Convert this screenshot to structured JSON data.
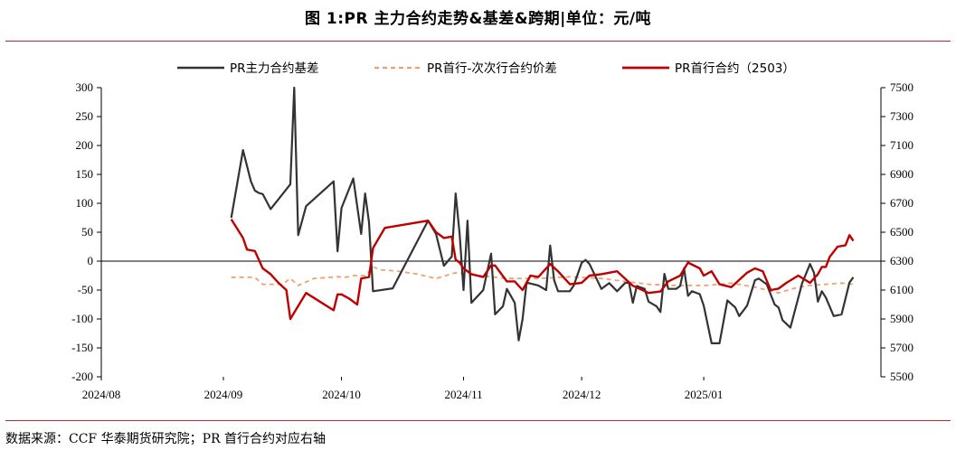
{
  "title": "图 1:PR 主力合约走势&基差&跨期|单位：元/吨",
  "source": "数据来源：CCF 华泰期货研究院；PR 首行合约对应右轴",
  "colors": {
    "accent": "#c0272d",
    "basis": "#333333",
    "spread": "#f0a070",
    "front": "#c00000"
  },
  "chart_data": {
    "type": "line",
    "x_ticks": [
      "2024/08",
      "2024/09",
      "2024/10",
      "2024/11",
      "2024/12",
      "2025/01"
    ],
    "y_left": {
      "ticks": [
        "300",
        "250",
        "200",
        "150",
        "100",
        "50",
        "0",
        "-50",
        "-100",
        "-150",
        "-200"
      ],
      "range": [
        -200,
        300
      ]
    },
    "y_right": {
      "ticks": [
        "7500",
        "7300",
        "7100",
        "6900",
        "6700",
        "6500",
        "6300",
        "6100",
        "5900",
        "5700",
        "5500"
      ],
      "range": [
        5500,
        7500
      ]
    },
    "legend": [
      "PR主力合约基差",
      "PR首行-次次行合约价差",
      "PR首行合约（2503）"
    ],
    "legend_position": "top",
    "series": [
      {
        "name": "PR主力合约基差",
        "axis": "left",
        "style": "solid",
        "points": [
          [
            "2024-09-03",
            75
          ],
          [
            "2024-09-06",
            192
          ],
          [
            "2024-09-08",
            138
          ],
          [
            "2024-09-09",
            122
          ],
          [
            "2024-09-10",
            118
          ],
          [
            "2024-09-11",
            116
          ],
          [
            "2024-09-13",
            90
          ],
          [
            "2024-09-18",
            133
          ],
          [
            "2024-09-19",
            300
          ],
          [
            "2024-09-20",
            45
          ],
          [
            "2024-09-22",
            95
          ],
          [
            "2024-09-29",
            138
          ],
          [
            "2024-09-30",
            17
          ],
          [
            "2024-10-01",
            92
          ],
          [
            "2024-10-04",
            143
          ],
          [
            "2024-10-06",
            47
          ],
          [
            "2024-10-07",
            117
          ],
          [
            "2024-10-08",
            67
          ],
          [
            "2024-10-09",
            -52
          ],
          [
            "2024-10-14",
            -47
          ],
          [
            "2024-10-23",
            70
          ],
          [
            "2024-10-25",
            47
          ],
          [
            "2024-10-27",
            -8
          ],
          [
            "2024-10-29",
            8
          ],
          [
            "2024-10-30",
            117
          ],
          [
            "2024-10-31",
            47
          ],
          [
            "2024-11-01",
            -50
          ],
          [
            "2024-11-02",
            70
          ],
          [
            "2024-11-03",
            -72
          ],
          [
            "2024-11-06",
            -50
          ],
          [
            "2024-11-08",
            13
          ],
          [
            "2024-11-09",
            -92
          ],
          [
            "2024-11-11",
            -78
          ],
          [
            "2024-11-12",
            -48
          ],
          [
            "2024-11-13",
            -60
          ],
          [
            "2024-11-14",
            -72
          ],
          [
            "2024-11-15",
            -137
          ],
          [
            "2024-11-16",
            -100
          ],
          [
            "2024-11-17",
            -37
          ],
          [
            "2024-11-20",
            -42
          ],
          [
            "2024-11-22",
            -50
          ],
          [
            "2024-11-23",
            27
          ],
          [
            "2024-11-24",
            -33
          ],
          [
            "2024-11-25",
            -52
          ],
          [
            "2024-11-28",
            -52
          ],
          [
            "2024-11-29",
            -42
          ],
          [
            "2024-12-01",
            -3
          ],
          [
            "2024-12-02",
            2
          ],
          [
            "2024-12-03",
            -5
          ],
          [
            "2024-12-06",
            -48
          ],
          [
            "2024-12-08",
            -38
          ],
          [
            "2024-12-10",
            -52
          ],
          [
            "2024-12-12",
            -38
          ],
          [
            "2024-12-13",
            -37
          ],
          [
            "2024-12-14",
            -72
          ],
          [
            "2024-12-15",
            -43
          ],
          [
            "2024-12-17",
            -48
          ],
          [
            "2024-12-18",
            -70
          ],
          [
            "2024-12-20",
            -78
          ],
          [
            "2024-12-21",
            -88
          ],
          [
            "2024-12-22",
            -22
          ],
          [
            "2024-12-23",
            -48
          ],
          [
            "2024-12-25",
            -48
          ],
          [
            "2024-12-26",
            -43
          ],
          [
            "2024-12-27",
            -12
          ],
          [
            "2024-12-28",
            -60
          ],
          [
            "2024-12-29",
            -52
          ],
          [
            "2024-12-31",
            -57
          ],
          [
            "2025-01-01",
            -77
          ],
          [
            "2025-01-03",
            -142
          ],
          [
            "2025-01-05",
            -142
          ],
          [
            "2025-01-07",
            -68
          ],
          [
            "2025-01-09",
            -80
          ],
          [
            "2025-01-10",
            -95
          ],
          [
            "2025-01-12",
            -77
          ],
          [
            "2025-01-14",
            -33
          ],
          [
            "2025-01-15",
            -30
          ],
          [
            "2025-01-17",
            -40
          ],
          [
            "2025-01-19",
            -75
          ],
          [
            "2025-01-20",
            -80
          ],
          [
            "2025-01-21",
            -102
          ],
          [
            "2025-01-23",
            -115
          ],
          [
            "2025-01-26",
            -38
          ],
          [
            "2025-01-28",
            -5
          ],
          [
            "2025-01-29",
            -20
          ],
          [
            "2025-01-30",
            -70
          ],
          [
            "2025-01-31",
            -52
          ],
          [
            "2025-02-01",
            -63
          ],
          [
            "2025-02-03",
            -95
          ],
          [
            "2025-02-05",
            -92
          ],
          [
            "2025-02-07",
            -37
          ],
          [
            "2025-02-08",
            -28
          ]
        ]
      },
      {
        "name": "PR首行-次次行合约价差",
        "axis": "left",
        "style": "dashed",
        "points": [
          [
            "2024-09-03",
            -28
          ],
          [
            "2024-09-09",
            -28
          ],
          [
            "2024-09-11",
            -40
          ],
          [
            "2024-09-16",
            -40
          ],
          [
            "2024-09-18",
            -30
          ],
          [
            "2024-09-20",
            -42
          ],
          [
            "2024-09-24",
            -30
          ],
          [
            "2024-09-30",
            -27
          ],
          [
            "2024-10-02",
            -28
          ],
          [
            "2024-10-04",
            -25
          ],
          [
            "2024-10-07",
            -25
          ],
          [
            "2024-10-09",
            -10
          ],
          [
            "2024-10-11",
            -15
          ],
          [
            "2024-10-15",
            -17
          ],
          [
            "2024-10-20",
            -22
          ],
          [
            "2024-10-25",
            -30
          ],
          [
            "2024-10-30",
            -20
          ],
          [
            "2024-11-05",
            -25
          ],
          [
            "2024-11-12",
            -30
          ],
          [
            "2024-11-20",
            -30
          ],
          [
            "2024-11-28",
            -27
          ],
          [
            "2024-12-06",
            -30
          ],
          [
            "2024-12-12",
            -35
          ],
          [
            "2024-12-18",
            -40
          ],
          [
            "2024-12-24",
            -42
          ],
          [
            "2025-01-02",
            -42
          ],
          [
            "2025-01-08",
            -38
          ],
          [
            "2025-01-14",
            -45
          ],
          [
            "2025-01-20",
            -55
          ],
          [
            "2025-01-25",
            -45
          ],
          [
            "2025-01-28",
            -42
          ],
          [
            "2025-02-01",
            -40
          ],
          [
            "2025-02-05",
            -38
          ],
          [
            "2025-02-08",
            -40
          ]
        ]
      },
      {
        "name": "PR首行合约（2503）",
        "axis": "right",
        "style": "solid",
        "points": [
          [
            "2024-09-03",
            6590
          ],
          [
            "2024-09-06",
            6460
          ],
          [
            "2024-09-07",
            6380
          ],
          [
            "2024-09-09",
            6370
          ],
          [
            "2024-09-11",
            6250
          ],
          [
            "2024-09-13",
            6210
          ],
          [
            "2024-09-15",
            6150
          ],
          [
            "2024-09-17",
            6100
          ],
          [
            "2024-09-18",
            5900
          ],
          [
            "2024-09-20",
            5990
          ],
          [
            "2024-09-22",
            6080
          ],
          [
            "2024-09-29",
            5960
          ],
          [
            "2024-09-30",
            6070
          ],
          [
            "2024-10-01",
            6070
          ],
          [
            "2024-10-03",
            6040
          ],
          [
            "2024-10-05",
            6000
          ],
          [
            "2024-10-06",
            6180
          ],
          [
            "2024-10-08",
            6190
          ],
          [
            "2024-10-09",
            6390
          ],
          [
            "2024-10-12",
            6530
          ],
          [
            "2024-10-23",
            6580
          ],
          [
            "2024-10-25",
            6500
          ],
          [
            "2024-10-27",
            6460
          ],
          [
            "2024-10-29",
            6470
          ],
          [
            "2024-10-30",
            6310
          ],
          [
            "2024-10-31",
            6290
          ],
          [
            "2024-11-01",
            6250
          ],
          [
            "2024-11-03",
            6210
          ],
          [
            "2024-11-06",
            6190
          ],
          [
            "2024-11-08",
            6270
          ],
          [
            "2024-11-09",
            6270
          ],
          [
            "2024-11-12",
            6160
          ],
          [
            "2024-11-14",
            6160
          ],
          [
            "2024-11-16",
            6100
          ],
          [
            "2024-11-18",
            6200
          ],
          [
            "2024-11-20",
            6190
          ],
          [
            "2024-11-23",
            6280
          ],
          [
            "2024-11-25",
            6230
          ],
          [
            "2024-11-28",
            6140
          ],
          [
            "2024-12-01",
            6150
          ],
          [
            "2024-12-03",
            6200
          ],
          [
            "2024-12-06",
            6210
          ],
          [
            "2024-12-10",
            6230
          ],
          [
            "2024-12-14",
            6130
          ],
          [
            "2024-12-18",
            6080
          ],
          [
            "2024-12-21",
            6090
          ],
          [
            "2024-12-23",
            6160
          ],
          [
            "2024-12-26",
            6200
          ],
          [
            "2024-12-28",
            6290
          ],
          [
            "2024-12-31",
            6250
          ],
          [
            "2025-01-01",
            6200
          ],
          [
            "2025-01-03",
            6230
          ],
          [
            "2025-01-05",
            6140
          ],
          [
            "2025-01-08",
            6120
          ],
          [
            "2025-01-12",
            6220
          ],
          [
            "2025-01-14",
            6250
          ],
          [
            "2025-01-16",
            6230
          ],
          [
            "2025-01-18",
            6100
          ],
          [
            "2025-01-20",
            6110
          ],
          [
            "2025-01-22",
            6150
          ],
          [
            "2025-01-25",
            6200
          ],
          [
            "2025-01-28",
            6150
          ],
          [
            "2025-01-30",
            6210
          ],
          [
            "2025-01-31",
            6260
          ],
          [
            "2025-02-01",
            6260
          ],
          [
            "2025-02-02",
            6330
          ],
          [
            "2025-02-04",
            6400
          ],
          [
            "2025-02-06",
            6410
          ],
          [
            "2025-02-07",
            6480
          ],
          [
            "2025-02-08",
            6440
          ]
        ]
      }
    ]
  }
}
